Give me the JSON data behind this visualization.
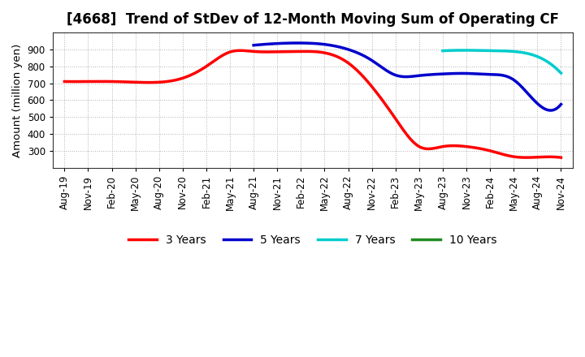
{
  "title": "[4668]  Trend of StDev of 12-Month Moving Sum of Operating CF",
  "ylabel": "Amount (million yen)",
  "background_color": "#ffffff",
  "grid_color": "#aaaaaa",
  "xtick_labels": [
    "Aug-19",
    "Nov-19",
    "Feb-20",
    "May-20",
    "Aug-20",
    "Nov-20",
    "Feb-21",
    "May-21",
    "Aug-21",
    "Nov-21",
    "Feb-22",
    "May-22",
    "Aug-22",
    "Nov-22",
    "Feb-23",
    "May-23",
    "Aug-23",
    "Nov-23",
    "Feb-24",
    "May-24",
    "Aug-24",
    "Nov-24"
  ],
  "series": {
    "3 Years": {
      "color": "#ff0000",
      "x_indices": [
        0,
        1,
        2,
        3,
        4,
        5,
        6,
        7,
        8,
        9,
        10,
        11,
        12,
        13,
        14,
        15,
        16,
        17,
        18,
        19,
        20,
        21
      ],
      "values": [
        710,
        710,
        710,
        706,
        706,
        730,
        800,
        885,
        888,
        886,
        888,
        880,
        820,
        680,
        490,
        325,
        325,
        325,
        300,
        265,
        262,
        260
      ]
    },
    "5 Years": {
      "color": "#0000cc",
      "x_indices": [
        8,
        9,
        10,
        11,
        12,
        13,
        14,
        15,
        16,
        17,
        18,
        19,
        20,
        21
      ],
      "values": [
        925,
        935,
        938,
        930,
        900,
        835,
        748,
        745,
        755,
        758,
        752,
        720,
        580,
        575
      ]
    },
    "7 Years": {
      "color": "#00cccc",
      "x_indices": [
        16,
        17,
        18,
        19,
        20,
        21
      ],
      "values": [
        892,
        895,
        893,
        888,
        858,
        760
      ]
    },
    "10 Years": {
      "color": "#228B22",
      "x_indices": [],
      "values": []
    }
  },
  "ylim": [
    200,
    1000
  ],
  "yticks": [
    300,
    400,
    500,
    600,
    700,
    800,
    900
  ],
  "title_fontsize": 12,
  "legend_fontsize": 10,
  "tick_fontsize": 8.5,
  "linewidth": 2.5
}
